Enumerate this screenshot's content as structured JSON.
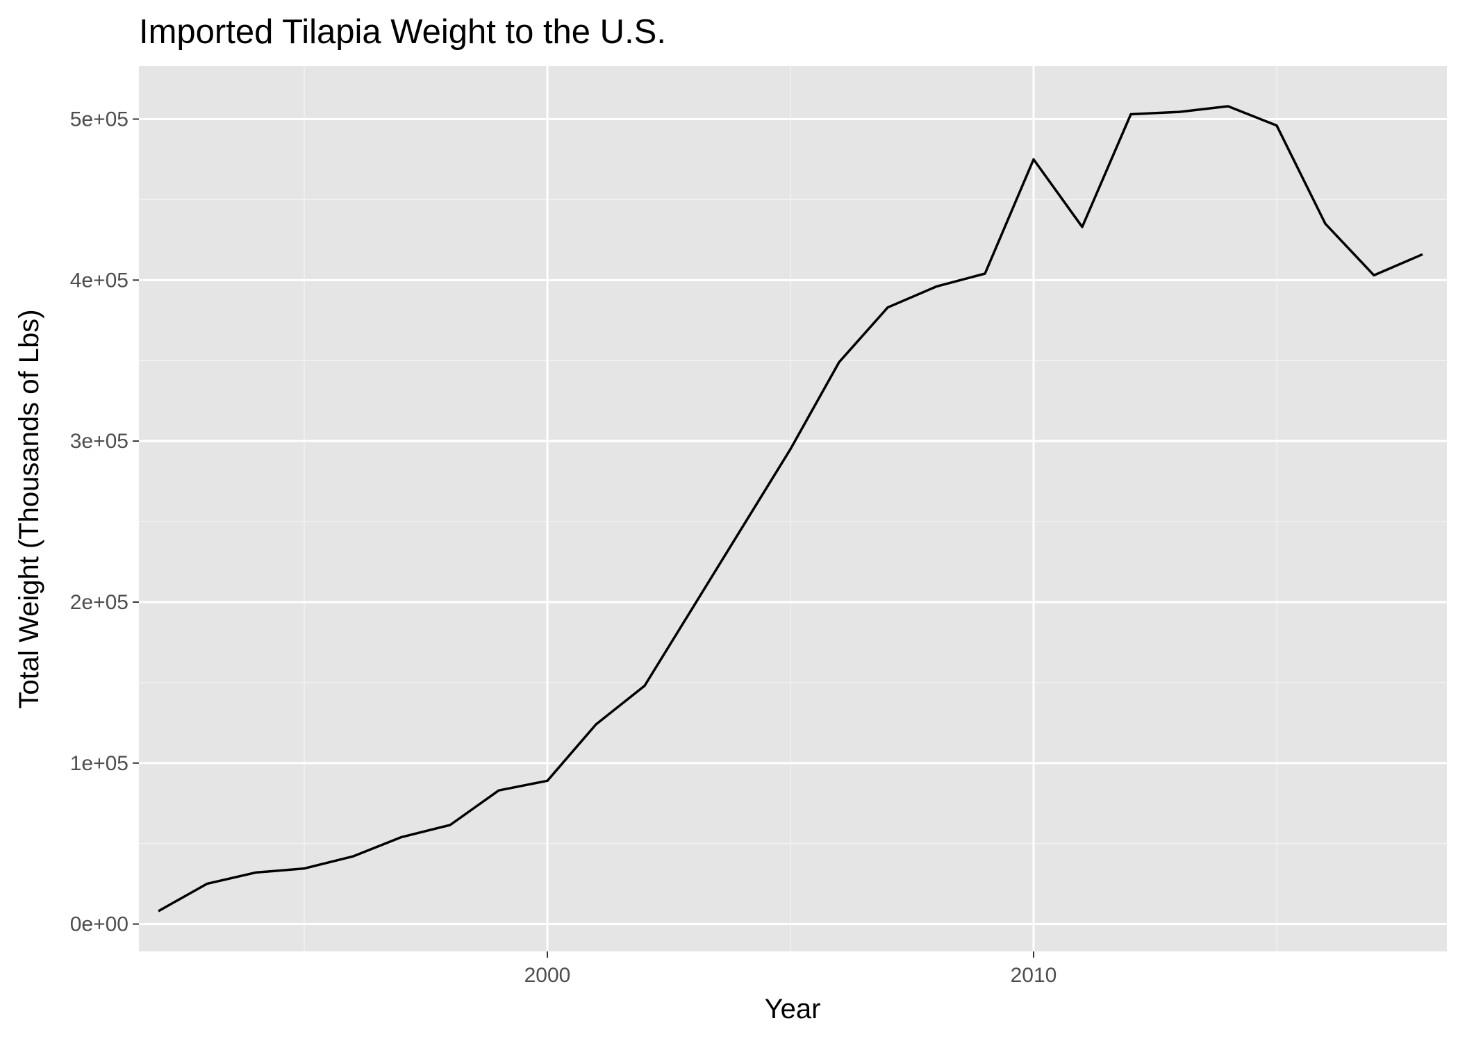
{
  "colors": {
    "panel_background": "#e5e5e5",
    "grid_major": "#ffffff",
    "grid_minor": "#f2f2f2",
    "line": "#000000",
    "tick_text": "#4d4d4d"
  },
  "chart_data": {
    "type": "line",
    "title": "Imported Tilapia Weight to the U.S.",
    "xlabel": "Year",
    "ylabel": "Total Weight (Thousands of Lbs)",
    "xlim": [
      1991.6,
      2018.5
    ],
    "ylim": [
      -17000,
      533000
    ],
    "x_major_ticks": [
      1995,
      2000,
      2005,
      2010,
      2015
    ],
    "x_tick_labels": [
      "",
      "2000",
      "",
      "2010",
      ""
    ],
    "y_major_ticks": [
      0,
      100000,
      200000,
      300000,
      400000,
      500000
    ],
    "y_tick_labels": [
      "0e+00",
      "1e+05",
      "2e+05",
      "3e+05",
      "4e+05",
      "5e+05"
    ],
    "y_minor_ticks": [
      50000,
      150000,
      250000,
      350000,
      450000
    ],
    "grid": true,
    "legend": "none",
    "series": [
      {
        "x": [
          1992,
          1993,
          1994,
          1995,
          1996,
          1997,
          1998,
          1999,
          2000,
          2001,
          2002,
          2003,
          2004,
          2005,
          2006,
          2007,
          2008,
          2009,
          2010,
          2011,
          2012,
          2013,
          2014,
          2015,
          2016,
          2017,
          2018
        ],
        "y": [
          8000,
          25000,
          32000,
          34500,
          42000,
          54000,
          61500,
          83000,
          89000,
          124000,
          148000,
          197000,
          246000,
          295000,
          349000,
          383000,
          396000,
          404000,
          475000,
          433000,
          503000,
          504500,
          508000,
          496000,
          435000,
          403000,
          416000
        ]
      }
    ]
  }
}
